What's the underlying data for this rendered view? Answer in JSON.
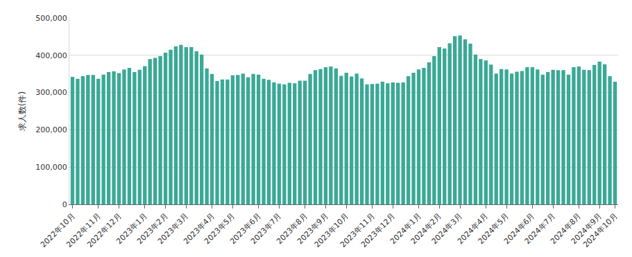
{
  "chart_data": {
    "type": "bar",
    "y_label": "求人数(件)",
    "color": "#3aa996",
    "grid": true,
    "ylim": [
      0,
      500000
    ],
    "yticks": [
      0,
      {
        "value": 100000,
        "label": "100,000"
      },
      {
        "value": 200000,
        "label": "200,000"
      },
      {
        "value": 300000,
        "label": "300,000"
      },
      {
        "value": 400000,
        "label": "400,000"
      },
      {
        "value": 500000,
        "label": "500,000"
      }
    ],
    "categories": [
      "2022年10月",
      null,
      null,
      null,
      null,
      "2022年11月",
      null,
      null,
      null,
      "2022年12月",
      null,
      null,
      null,
      null,
      "2023年1月",
      null,
      null,
      null,
      "2023年2月",
      null,
      null,
      null,
      "2023年3月",
      null,
      null,
      null,
      null,
      "2023年4月",
      null,
      null,
      null,
      "2023年5月",
      null,
      null,
      null,
      null,
      "2023年6月",
      null,
      null,
      null,
      "2023年7月",
      null,
      null,
      null,
      null,
      "2023年8月",
      null,
      null,
      null,
      "2023年9月",
      null,
      null,
      null,
      "2023年10月",
      null,
      null,
      null,
      null,
      "2023年11月",
      null,
      null,
      null,
      "2023年12月",
      null,
      null,
      null,
      null,
      "2024年1月",
      null,
      null,
      null,
      "2024年2月",
      null,
      null,
      null,
      "2024年3月",
      null,
      null,
      null,
      null,
      "2024年4月",
      null,
      null,
      null,
      "2024年5月",
      null,
      null,
      null,
      null,
      "2024年6月",
      null,
      null,
      null,
      "2024年7月",
      null,
      null,
      null,
      null,
      "2024年8月",
      null,
      null,
      null,
      "2024年9月",
      null,
      null,
      "2024年10月"
    ],
    "values": [
      342000,
      337000,
      344000,
      347000,
      347000,
      337000,
      348000,
      355000,
      357000,
      352000,
      362000,
      366000,
      355000,
      361000,
      371000,
      390000,
      393000,
      398000,
      407000,
      415000,
      424000,
      428000,
      422000,
      422000,
      411000,
      402000,
      365000,
      350000,
      331000,
      335000,
      335000,
      346000,
      347000,
      351000,
      341000,
      350000,
      348000,
      337000,
      334000,
      327000,
      324000,
      322000,
      326000,
      325000,
      332000,
      332000,
      350000,
      360000,
      363000,
      368000,
      370000,
      365000,
      345000,
      353000,
      343000,
      351000,
      338000,
      322000,
      323000,
      324000,
      329000,
      325000,
      327000,
      326000,
      327000,
      344000,
      353000,
      362000,
      366000,
      381000,
      398000,
      422000,
      418000,
      432000,
      451000,
      453000,
      443000,
      431000,
      402000,
      390000,
      386000,
      375000,
      351000,
      363000,
      362000,
      351000,
      356000,
      358000,
      368000,
      368000,
      362000,
      348000,
      355000,
      361000,
      360000,
      360000,
      348000,
      368000,
      370000,
      361000,
      360000,
      374000,
      383000,
      376000,
      344000,
      329000
    ]
  }
}
